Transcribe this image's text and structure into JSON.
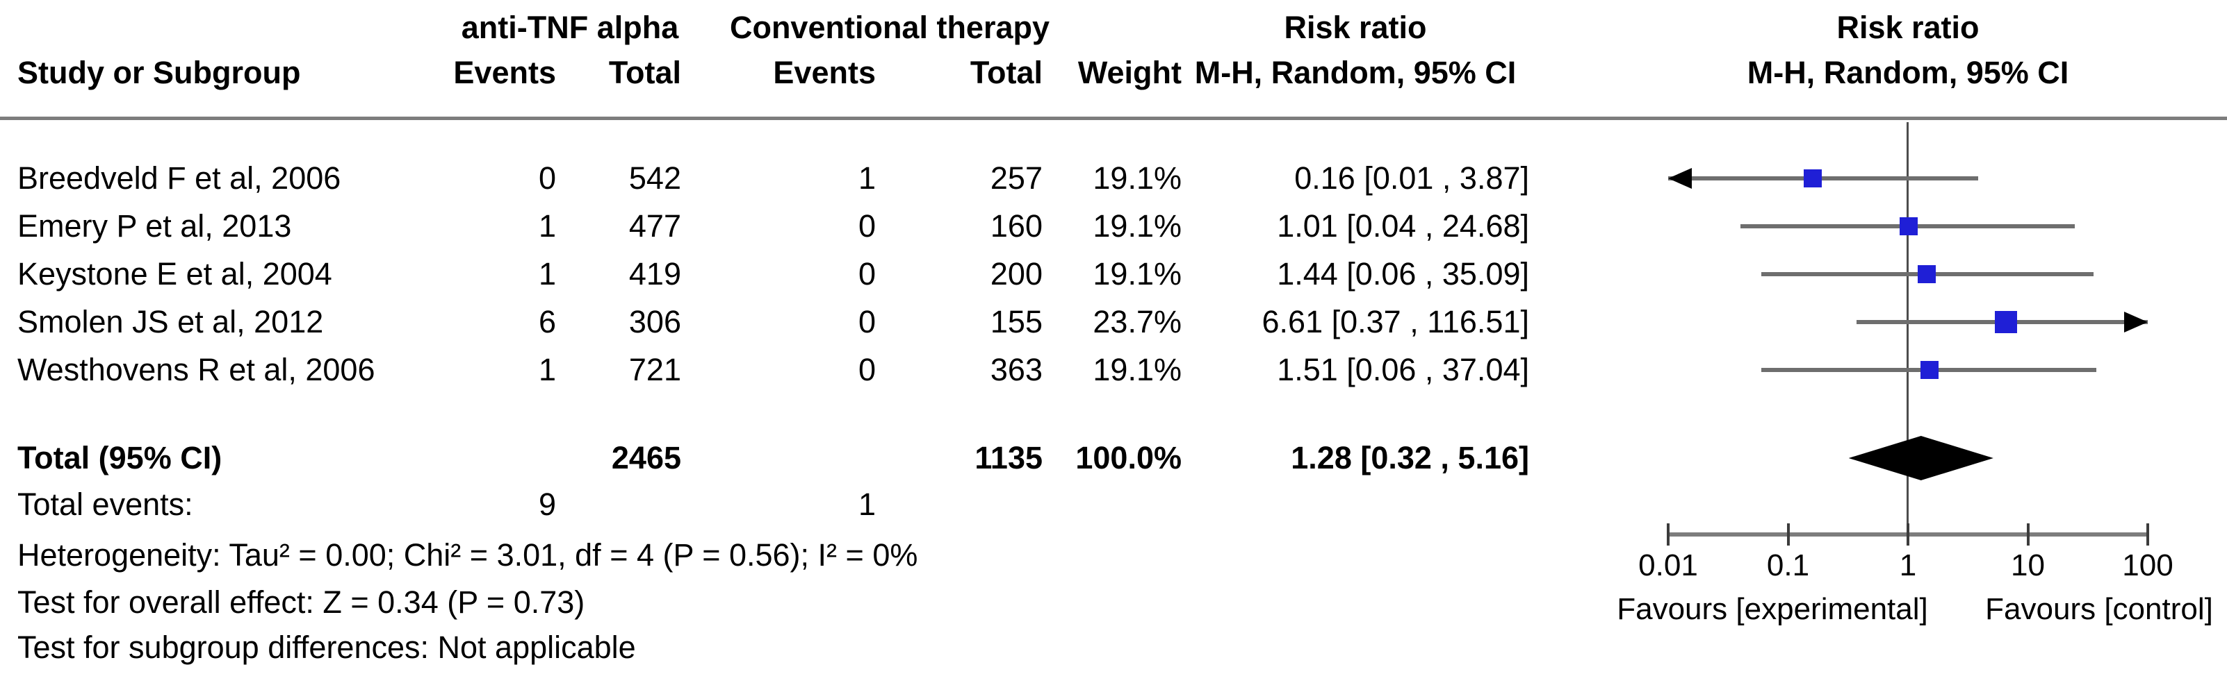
{
  "header": {
    "group1": "anti-TNF alpha",
    "group2": "Conventional therapy",
    "risk_ratio": "Risk ratio",
    "method": "M-H, Random, 95% CI",
    "study": "Study or Subgroup",
    "events": "Events",
    "total": "Total",
    "weight": "Weight"
  },
  "chart_data": {
    "type": "forest",
    "effect_measure": "Risk ratio",
    "model": "M-H, Random, 95% CI",
    "x_axis": {
      "scale": "log",
      "min": 0.01,
      "max": 100,
      "ticks": [
        "0.01",
        "0.1",
        "1",
        "10",
        "100"
      ],
      "favours_left": "Favours [experimental]",
      "favours_right": "Favours [control]"
    },
    "studies": [
      {
        "name": "Breedveld F et al, 2006",
        "events1": 0,
        "total1": 542,
        "events2": 1,
        "total2": 257,
        "weight_pct": 19.1,
        "weight_label": "19.1%",
        "rr": 0.16,
        "ci_low": 0.01,
        "ci_high": 3.87,
        "ci_label": "0.16 [0.01 , 3.87]"
      },
      {
        "name": "Emery P et al, 2013",
        "events1": 1,
        "total1": 477,
        "events2": 0,
        "total2": 160,
        "weight_pct": 19.1,
        "weight_label": "19.1%",
        "rr": 1.01,
        "ci_low": 0.04,
        "ci_high": 24.68,
        "ci_label": "1.01 [0.04 , 24.68]"
      },
      {
        "name": "Keystone E et al, 2004",
        "events1": 1,
        "total1": 419,
        "events2": 0,
        "total2": 200,
        "weight_pct": 19.1,
        "weight_label": "19.1%",
        "rr": 1.44,
        "ci_low": 0.06,
        "ci_high": 35.09,
        "ci_label": "1.44 [0.06 , 35.09]"
      },
      {
        "name": "Smolen JS et al, 2012",
        "events1": 6,
        "total1": 306,
        "events2": 0,
        "total2": 155,
        "weight_pct": 23.7,
        "weight_label": "23.7%",
        "rr": 6.61,
        "ci_low": 0.37,
        "ci_high": 116.51,
        "ci_label": "6.61 [0.37 , 116.51]"
      },
      {
        "name": "Westhovens R et al, 2006",
        "events1": 1,
        "total1": 721,
        "events2": 0,
        "total2": 363,
        "weight_pct": 19.1,
        "weight_label": "19.1%",
        "rr": 1.51,
        "ci_low": 0.06,
        "ci_high": 37.04,
        "ci_label": "1.51 [0.06 , 37.04]"
      }
    ],
    "total": {
      "label": "Total (95% CI)",
      "total1": "2465",
      "total2": "1135",
      "weight_label": "100.0%",
      "rr": 1.28,
      "ci_low": 0.32,
      "ci_high": 5.16,
      "ci_label": "1.28 [0.32 , 5.16]"
    },
    "total_events": {
      "label": "Total events:",
      "events1": "9",
      "events2": "1"
    },
    "footnotes": {
      "heterogeneity": "Heterogeneity: Tau² = 0.00; Chi² = 3.01, df = 4 (P = 0.56); I² = 0%",
      "overall": "Test for overall effect: Z = 0.34 (P = 0.73)",
      "subgroup": "Test for subgroup differences: Not applicable"
    },
    "colors": {
      "marker": "#1f1fd6",
      "ci_line": "#6e6e6e",
      "axis": "#7d7d7d",
      "diamond": "#000000"
    }
  }
}
